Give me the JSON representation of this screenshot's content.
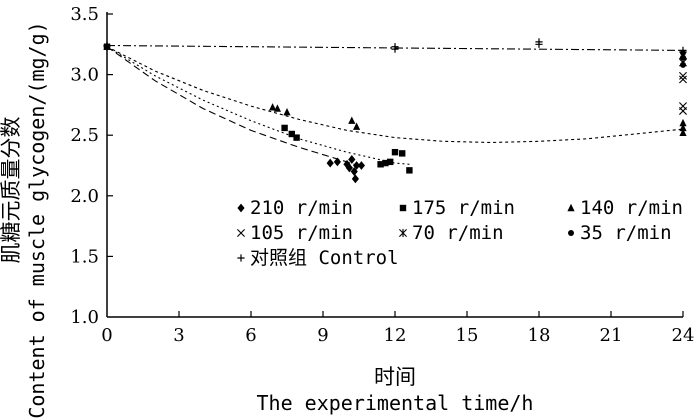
{
  "chart_data": {
    "type": "scatter",
    "xlabel_cn": "时间",
    "xlabel_en": "The experimental time/h",
    "ylabel_cn": "肌糖元质量分数",
    "ylabel_en": "Content of muscle glycogen/(mg/g)",
    "xlim": [
      0,
      24
    ],
    "ylim": [
      1.0,
      3.5
    ],
    "xticks": [
      0,
      3,
      6,
      9,
      12,
      15,
      18,
      21,
      24
    ],
    "yticks": [
      1.0,
      1.5,
      2.0,
      2.5,
      3.0,
      3.5
    ],
    "xtick_labels": [
      "0",
      "3",
      "6",
      "9",
      "12",
      "15",
      "18",
      "21",
      "24"
    ],
    "ytick_labels": [
      "1.0",
      "1.5",
      "2.0",
      "2.5",
      "3.0",
      "3.5"
    ],
    "series": [
      {
        "name": "210 r/min",
        "marker": "diamond",
        "points": [
          [
            0,
            3.23
          ],
          [
            9.3,
            2.27
          ],
          [
            9.6,
            2.28
          ],
          [
            10.0,
            2.26
          ],
          [
            10.1,
            2.23
          ],
          [
            10.2,
            2.3
          ],
          [
            10.3,
            2.2
          ],
          [
            10.35,
            2.14
          ],
          [
            10.4,
            2.25
          ],
          [
            10.6,
            2.25
          ]
        ]
      },
      {
        "name": "175 r/min",
        "marker": "square",
        "points": [
          [
            0,
            3.23
          ],
          [
            7.4,
            2.56
          ],
          [
            7.7,
            2.51
          ],
          [
            7.9,
            2.48
          ],
          [
            12.0,
            2.36
          ],
          [
            12.3,
            2.35
          ],
          [
            11.6,
            2.27
          ],
          [
            11.8,
            2.28
          ],
          [
            12.6,
            2.21
          ],
          [
            11.4,
            2.26
          ]
        ]
      },
      {
        "name": "140 r/min",
        "marker": "triangle",
        "points": [
          [
            0,
            3.23
          ],
          [
            6.9,
            2.73
          ],
          [
            7.1,
            2.72
          ],
          [
            7.5,
            2.69
          ],
          [
            10.2,
            2.62
          ],
          [
            10.4,
            2.57
          ],
          [
            24,
            2.6
          ],
          [
            24,
            2.56
          ],
          [
            24,
            2.52
          ]
        ]
      },
      {
        "name": "105 r/min",
        "marker": "x",
        "points": [
          [
            24,
            2.99
          ],
          [
            24,
            2.96
          ],
          [
            24,
            2.74
          ],
          [
            24,
            2.7
          ]
        ]
      },
      {
        "name": "70 r/min",
        "marker": "asterisk",
        "points": [
          [
            24,
            3.16
          ],
          [
            24,
            3.1
          ]
        ]
      },
      {
        "name": "35 r/min",
        "marker": "circle",
        "points": [
          [
            24,
            3.18
          ],
          [
            24,
            3.14
          ],
          [
            24,
            3.08
          ]
        ]
      },
      {
        "name": "对照组 Control",
        "marker": "plus",
        "points": [
          [
            0,
            3.24
          ],
          [
            12,
            3.23
          ],
          [
            12,
            3.21
          ],
          [
            18,
            3.27
          ],
          [
            18,
            3.25
          ],
          [
            24,
            3.2
          ]
        ]
      }
    ],
    "fit_lines": [
      {
        "series": "210 r/min",
        "style": "long-dash",
        "points": [
          [
            0,
            3.23
          ],
          [
            2,
            2.95
          ],
          [
            4,
            2.72
          ],
          [
            6,
            2.54
          ],
          [
            8,
            2.4
          ],
          [
            10,
            2.28
          ],
          [
            10.6,
            2.24
          ]
        ]
      },
      {
        "series": "175 r/min",
        "style": "dotted",
        "points": [
          [
            0,
            3.23
          ],
          [
            2,
            2.99
          ],
          [
            4,
            2.79
          ],
          [
            6,
            2.62
          ],
          [
            8,
            2.47
          ],
          [
            10,
            2.36
          ],
          [
            12,
            2.27
          ],
          [
            12.6,
            2.26
          ]
        ]
      },
      {
        "series": "140 r/min",
        "style": "short-dash",
        "points": [
          [
            0,
            3.23
          ],
          [
            2,
            3.03
          ],
          [
            4,
            2.87
          ],
          [
            6,
            2.74
          ],
          [
            8,
            2.63
          ],
          [
            10,
            2.54
          ],
          [
            12,
            2.48
          ],
          [
            14,
            2.45
          ],
          [
            16,
            2.44
          ],
          [
            18,
            2.45
          ],
          [
            20,
            2.47
          ],
          [
            22,
            2.51
          ],
          [
            24,
            2.55
          ]
        ]
      },
      {
        "series": "对照组 Control",
        "style": "dash-dot",
        "points": [
          [
            0,
            3.24
          ],
          [
            24,
            3.2
          ]
        ]
      }
    ],
    "legend": [
      {
        "symbol": "◆",
        "label": "210 r/min"
      },
      {
        "symbol": "■",
        "label": "175 r/min"
      },
      {
        "symbol": "▲",
        "label": "140 r/min"
      },
      {
        "symbol": "×",
        "label": "105 r/min"
      },
      {
        "symbol": "✻",
        "label": "70 r/min"
      },
      {
        "symbol": "●",
        "label": "35 r/min"
      },
      {
        "symbol": "+",
        "label": "对照组 Control"
      }
    ]
  }
}
